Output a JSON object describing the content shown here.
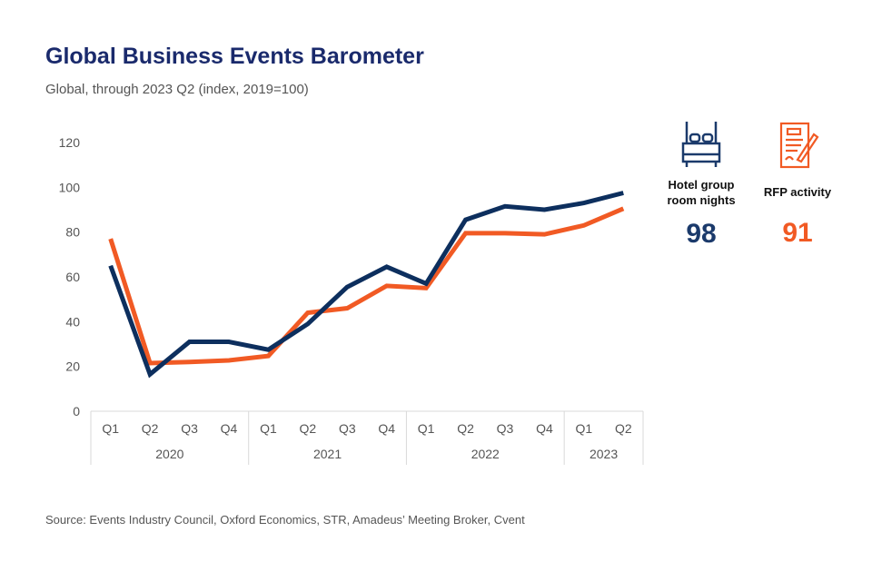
{
  "title": "Global Business Events Barometer",
  "subtitle": "Global, through 2023 Q2 (index, 2019=100)",
  "source": "Source: Events Industry Council, Oxford Economics, STR, Amadeus’ Meeting Broker, Cvent",
  "kpis": [
    {
      "label_line1": "Hotel group",
      "label_line2": "room nights",
      "value": "98",
      "icon": "bed-icon",
      "color": "#1b3a6b"
    },
    {
      "label_line1": "RFP activity",
      "label_line2": "",
      "value": "91",
      "icon": "document-pen-icon",
      "color": "#f15a24"
    }
  ],
  "chart_data": {
    "type": "line",
    "categories": [
      "Q1",
      "Q2",
      "Q3",
      "Q4",
      "Q1",
      "Q2",
      "Q3",
      "Q4",
      "Q1",
      "Q2",
      "Q3",
      "Q4",
      "Q1",
      "Q2"
    ],
    "groups": [
      {
        "label": "2020",
        "count": 4
      },
      {
        "label": "2021",
        "count": 4
      },
      {
        "label": "2022",
        "count": 4
      },
      {
        "label": "2023",
        "count": 2
      }
    ],
    "ylim": [
      0,
      120
    ],
    "yticks": [
      0,
      20,
      40,
      60,
      80,
      100,
      120
    ],
    "grid": false,
    "series": [
      {
        "name": "Hotel group room nights",
        "color": "#0d2f5e",
        "values": [
          65,
          16.5,
          31,
          31,
          27.5,
          39,
          55.5,
          64.5,
          57,
          85.5,
          91.5,
          90,
          93,
          97.5
        ]
      },
      {
        "name": "RFP activity",
        "color": "#f15a24",
        "values": [
          77,
          21.5,
          22,
          22.7,
          24.7,
          44,
          46,
          56,
          55,
          79.5,
          79.5,
          79,
          83,
          90.5
        ]
      }
    ]
  }
}
